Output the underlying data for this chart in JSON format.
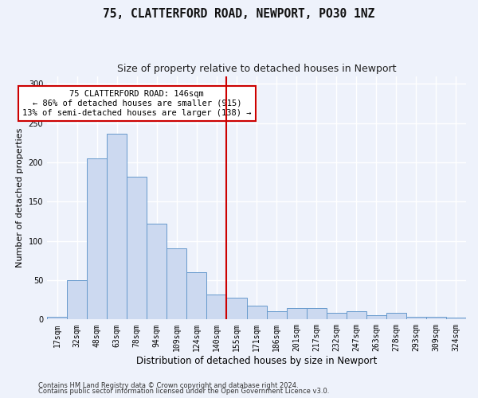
{
  "title": "75, CLATTERFORD ROAD, NEWPORT, PO30 1NZ",
  "subtitle": "Size of property relative to detached houses in Newport",
  "xlabel": "Distribution of detached houses by size in Newport",
  "ylabel": "Number of detached properties",
  "categories": [
    "17sqm",
    "32sqm",
    "48sqm",
    "63sqm",
    "78sqm",
    "94sqm",
    "109sqm",
    "124sqm",
    "140sqm",
    "155sqm",
    "171sqm",
    "186sqm",
    "201sqm",
    "217sqm",
    "232sqm",
    "247sqm",
    "263sqm",
    "278sqm",
    "293sqm",
    "309sqm",
    "324sqm"
  ],
  "values": [
    3,
    50,
    205,
    237,
    182,
    122,
    91,
    60,
    32,
    28,
    18,
    10,
    15,
    15,
    8,
    10,
    5,
    8,
    3,
    3,
    2
  ],
  "bar_color": "#ccd9f0",
  "bar_edge_color": "#6699cc",
  "vline_position": 8,
  "vline_color": "#cc0000",
  "annotation_text": "75 CLATTERFORD ROAD: 146sqm\n← 86% of detached houses are smaller (915)\n13% of semi-detached houses are larger (138) →",
  "annotation_box_color": "#ffffff",
  "annotation_box_edge": "#cc0000",
  "background_color": "#eef2fb",
  "grid_color": "#ffffff",
  "ylim": [
    0,
    310
  ],
  "footer1": "Contains HM Land Registry data © Crown copyright and database right 2024.",
  "footer2": "Contains public sector information licensed under the Open Government Licence v3.0."
}
